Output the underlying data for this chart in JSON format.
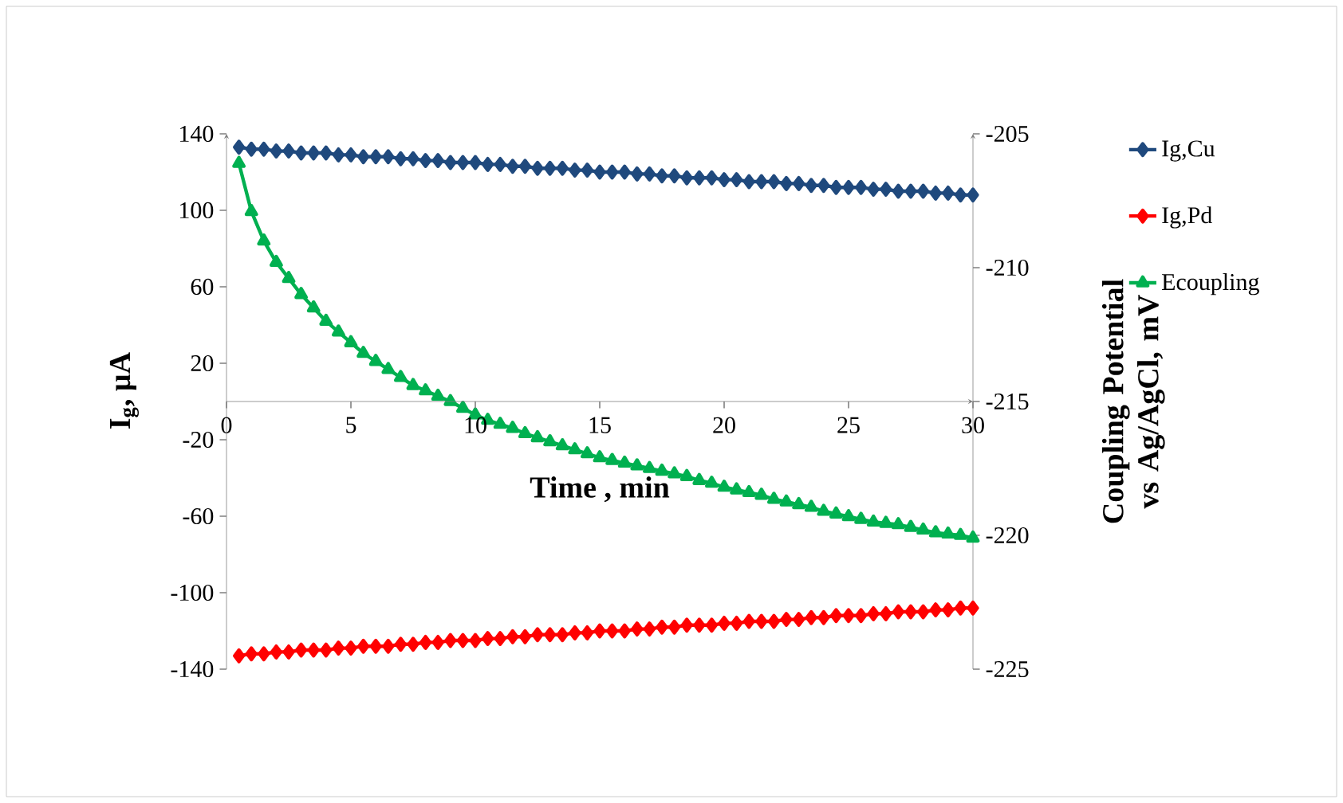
{
  "chart_data": {
    "type": "line",
    "xlabel": "Time , min",
    "ylabel": "I$_{g}$, µA",
    "y2label": "Coupling Potential vs Ag/AgCl, mV",
    "xlim": [
      0,
      30
    ],
    "xticks": [
      0,
      5,
      10,
      15,
      20,
      25,
      30
    ],
    "ylim": [
      -140,
      140
    ],
    "yticks": [
      -140,
      -100,
      -60,
      -20,
      20,
      60,
      100,
      140
    ],
    "y2lim": [
      -225,
      -205
    ],
    "y2ticks": [
      -225,
      -220,
      -215,
      -210,
      -205
    ],
    "legend": "top right",
    "x": [
      0.5,
      1,
      1.5,
      2,
      2.5,
      3,
      3.5,
      4,
      4.5,
      5,
      5.5,
      6,
      6.5,
      7,
      7.5,
      8,
      8.5,
      9,
      9.5,
      10,
      10.5,
      11,
      11.5,
      12,
      12.5,
      13,
      13.5,
      14,
      14.5,
      15,
      15.5,
      16,
      16.5,
      17,
      17.5,
      18,
      18.5,
      19,
      19.5,
      20,
      20.5,
      21,
      21.5,
      22,
      22.5,
      23,
      23.5,
      24,
      24.5,
      25,
      25.5,
      26,
      26.5,
      27,
      27.5,
      28,
      28.5,
      29,
      29.5,
      30
    ],
    "series": [
      {
        "name": "Ig,Cu",
        "color": "#1f497d",
        "marker": "diamond",
        "values": [
          133,
          132,
          132,
          131,
          131,
          130,
          130,
          130,
          129,
          129,
          128,
          128,
          128,
          127,
          127,
          126,
          126,
          125,
          125,
          125,
          124,
          124,
          123,
          123,
          122,
          122,
          122,
          121,
          121,
          120,
          120,
          120,
          119,
          119,
          118,
          118,
          117,
          117,
          117,
          116,
          116,
          115,
          115,
          115,
          114,
          114,
          113,
          113,
          112,
          112,
          112,
          111,
          111,
          110,
          110,
          110,
          109,
          109,
          108,
          108
        ]
      },
      {
        "name": "Ig,Pd",
        "color": "#ff0000",
        "marker": "diamond",
        "values": [
          -133,
          -132,
          -132,
          -131,
          -131,
          -130,
          -130,
          -130,
          -129,
          -129,
          -128,
          -128,
          -128,
          -127,
          -127,
          -126,
          -126,
          -125,
          -125,
          -125,
          -124,
          -124,
          -123,
          -123,
          -122,
          -122,
          -122,
          -121,
          -121,
          -120,
          -120,
          -120,
          -119,
          -119,
          -118,
          -118,
          -117,
          -117,
          -117,
          -116,
          -116,
          -115,
          -115,
          -115,
          -114,
          -114,
          -113,
          -113,
          -112,
          -112,
          -112,
          -111,
          -111,
          -110,
          -110,
          -110,
          -109,
          -109,
          -108,
          -108
        ]
      },
      {
        "name": "Ecoupling",
        "color": "#00b050",
        "marker": "triangle",
        "axis": "y2",
        "values": [
          -206.1,
          -207.9,
          -209.0,
          -209.8,
          -210.4,
          -211.0,
          -211.5,
          -212.0,
          -212.4,
          -212.8,
          -213.2,
          -213.5,
          -213.8,
          -214.1,
          -214.4,
          -214.6,
          -214.8,
          -215.0,
          -215.25,
          -215.5,
          -215.7,
          -215.85,
          -216.0,
          -216.2,
          -216.35,
          -216.5,
          -216.65,
          -216.8,
          -216.95,
          -217.1,
          -217.2,
          -217.3,
          -217.4,
          -217.5,
          -217.6,
          -217.7,
          -217.8,
          -217.95,
          -218.05,
          -218.2,
          -218.3,
          -218.4,
          -218.5,
          -218.65,
          -218.75,
          -218.85,
          -218.95,
          -219.1,
          -219.2,
          -219.3,
          -219.4,
          -219.5,
          -219.55,
          -219.6,
          -219.7,
          -219.8,
          -219.9,
          -219.95,
          -220.0,
          -220.1
        ]
      }
    ]
  }
}
